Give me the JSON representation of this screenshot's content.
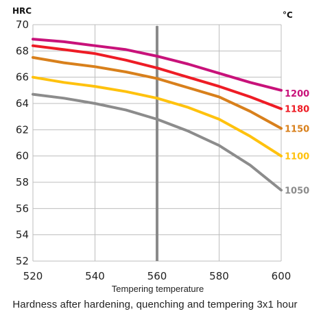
{
  "caption": "Hardness after hardening, quenching and tempering  3x1 hour",
  "chart_data": {
    "type": "line",
    "title": "",
    "xlabel": "Tempering temperature",
    "ylabel": "HRC",
    "y_unit_label": "HRC",
    "right_unit_label": "°C",
    "xlim": [
      520,
      600
    ],
    "ylim": [
      52,
      70
    ],
    "x_ticks": [
      "520",
      "540",
      "560",
      "580",
      "600"
    ],
    "y_ticks": [
      "52",
      "54",
      "56",
      "58",
      "60",
      "62",
      "64",
      "66",
      "68",
      "70"
    ],
    "grid": true,
    "reference_line_x": 560,
    "x": [
      520,
      530,
      540,
      550,
      560,
      570,
      580,
      590,
      600
    ],
    "series": [
      {
        "name": "1200",
        "color": "#c8127a",
        "values": [
          68.9,
          68.7,
          68.4,
          68.1,
          67.6,
          67.0,
          66.3,
          65.6,
          65.0
        ]
      },
      {
        "name": "1180",
        "color": "#ee1c25",
        "values": [
          68.4,
          68.1,
          67.8,
          67.3,
          66.7,
          66.0,
          65.3,
          64.5,
          63.6
        ]
      },
      {
        "name": "1150",
        "color": "#d8801c",
        "values": [
          67.5,
          67.1,
          66.8,
          66.4,
          65.9,
          65.2,
          64.5,
          63.4,
          62.1
        ]
      },
      {
        "name": "1100",
        "color": "#ffc20e",
        "values": [
          66.0,
          65.6,
          65.3,
          64.9,
          64.4,
          63.7,
          62.8,
          61.5,
          60.0
        ]
      },
      {
        "name": "1050",
        "color": "#8c8c8c",
        "values": [
          64.7,
          64.4,
          64.0,
          63.5,
          62.8,
          61.9,
          60.8,
          59.3,
          57.4
        ]
      }
    ]
  }
}
